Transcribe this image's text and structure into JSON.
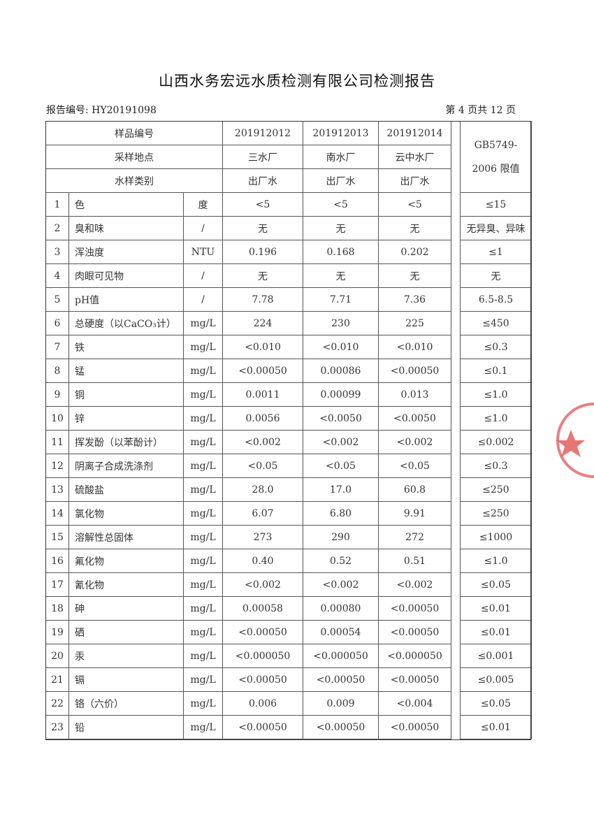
{
  "title": "山西水务宏远水质检测有限公司检测报告",
  "report_no": "报告编号: HY20191098",
  "page_no": "第 4 页共 12 页",
  "header": {
    "sample_no_label": "样品编号",
    "location_label": "采样地点",
    "type_label": "水样类别",
    "limit_label_1": "GB5749-",
    "limit_label_2": "2006 限值",
    "samples": [
      {
        "no": "201912012",
        "location": "三水厂",
        "type": "出厂水"
      },
      {
        "no": "201912013",
        "location": "南水厂",
        "type": "出厂水"
      },
      {
        "no": "201912014",
        "location": "云中水厂",
        "type": "出厂水"
      }
    ]
  },
  "rows": [
    {
      "n": "1",
      "name": "色",
      "unit": "度",
      "v": [
        "<5",
        "<5",
        "<5"
      ],
      "limit": "≤15"
    },
    {
      "n": "2",
      "name": "臭和味",
      "unit": "/",
      "v": [
        "无",
        "无",
        "无"
      ],
      "limit": "无异臭、异味"
    },
    {
      "n": "3",
      "name": "浑浊度",
      "unit": "NTU",
      "v": [
        "0.196",
        "0.168",
        "0.202"
      ],
      "limit": "≤1"
    },
    {
      "n": "4",
      "name": "肉眼可见物",
      "unit": "/",
      "v": [
        "无",
        "无",
        "无"
      ],
      "limit": "无"
    },
    {
      "n": "5",
      "name": "pH值",
      "unit": "/",
      "v": [
        "7.78",
        "7.71",
        "7.36"
      ],
      "limit": "6.5-8.5"
    },
    {
      "n": "6",
      "name": "总硬度（以CaCO₃计）",
      "unit": "mg/L",
      "v": [
        "224",
        "230",
        "225"
      ],
      "limit": "≤450"
    },
    {
      "n": "7",
      "name": "铁",
      "unit": "mg/L",
      "v": [
        "<0.010",
        "<0.010",
        "<0.010"
      ],
      "limit": "≤0.3"
    },
    {
      "n": "8",
      "name": "锰",
      "unit": "mg/L",
      "v": [
        "<0.00050",
        "0.00086",
        "<0.00050"
      ],
      "limit": "≤0.1"
    },
    {
      "n": "9",
      "name": "铜",
      "unit": "mg/L",
      "v": [
        "0.0011",
        "0.00099",
        "0.013"
      ],
      "limit": "≤1.0"
    },
    {
      "n": "10",
      "name": "锌",
      "unit": "mg/L",
      "v": [
        "0.0056",
        "<0.0050",
        "<0.0050"
      ],
      "limit": "≤1.0"
    },
    {
      "n": "11",
      "name": "挥发酚（以苯酚计）",
      "unit": "mg/L",
      "v": [
        "<0.002",
        "<0.002",
        "<0.002"
      ],
      "limit": "≤0.002"
    },
    {
      "n": "12",
      "name": "阴离子合成洗涤剂",
      "unit": "mg/L",
      "v": [
        "<0.05",
        "<0.05",
        "<0.05"
      ],
      "limit": "≤0.3"
    },
    {
      "n": "13",
      "name": "硫酸盐",
      "unit": "mg/L",
      "v": [
        "28.0",
        "17.0",
        "60.8"
      ],
      "limit": "≤250"
    },
    {
      "n": "14",
      "name": "氯化物",
      "unit": "mg/L",
      "v": [
        "6.07",
        "6.80",
        "9.91"
      ],
      "limit": "≤250"
    },
    {
      "n": "15",
      "name": "溶解性总固体",
      "unit": "mg/L",
      "v": [
        "273",
        "290",
        "272"
      ],
      "limit": "≤1000"
    },
    {
      "n": "16",
      "name": "氟化物",
      "unit": "mg/L",
      "v": [
        "0.40",
        "0.52",
        "0.51"
      ],
      "limit": "≤1.0"
    },
    {
      "n": "17",
      "name": "氰化物",
      "unit": "mg/L",
      "v": [
        "<0.002",
        "<0.002",
        "<0.002"
      ],
      "limit": "≤0.05"
    },
    {
      "n": "18",
      "name": "砷",
      "unit": "mg/L",
      "v": [
        "0.00058",
        "0.00080",
        "<0.00050"
      ],
      "limit": "≤0.01"
    },
    {
      "n": "19",
      "name": "硒",
      "unit": "mg/L",
      "v": [
        "<0.00050",
        "0.00054",
        "<0.00050"
      ],
      "limit": "≤0.01"
    },
    {
      "n": "20",
      "name": "汞",
      "unit": "mg/L",
      "v": [
        "<0.000050",
        "<0.000050",
        "<0.000050"
      ],
      "limit": "≤0.001"
    },
    {
      "n": "21",
      "name": "镉",
      "unit": "mg/L",
      "v": [
        "<0.00050",
        "<0.00050",
        "<0.00050"
      ],
      "limit": "≤0.005"
    },
    {
      "n": "22",
      "name": "铬（六价）",
      "unit": "mg/L",
      "v": [
        "0.006",
        "0.009",
        "<0.004"
      ],
      "limit": "≤0.05"
    },
    {
      "n": "23",
      "name": "铅",
      "unit": "mg/L",
      "v": [
        "<0.00050",
        "<0.00050",
        "<0.00050"
      ],
      "limit": "≤0.01"
    }
  ],
  "stamp_color": "#e04848"
}
